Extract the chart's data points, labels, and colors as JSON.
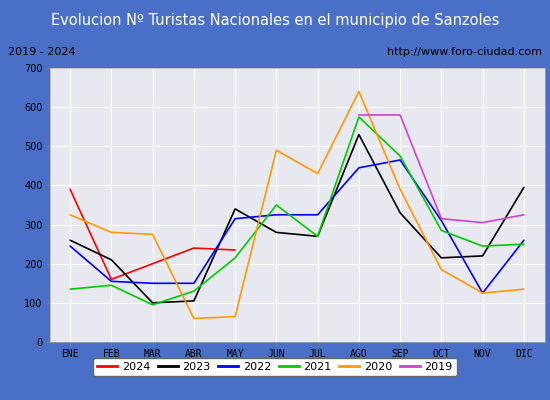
{
  "title": "Evolucion Nº Turistas Nacionales en el municipio de Sanzoles",
  "subtitle_left": "2019 - 2024",
  "subtitle_right": "http://www.foro-ciudad.com",
  "months": [
    "ENE",
    "FEB",
    "MAR",
    "ABR",
    "MAY",
    "JUN",
    "JUL",
    "AGO",
    "SEP",
    "OCT",
    "NOV",
    "DIC"
  ],
  "ylim": [
    0,
    700
  ],
  "yticks": [
    0,
    100,
    200,
    300,
    400,
    500,
    600,
    700
  ],
  "series": {
    "2024": {
      "color": "#ff0000",
      "values": [
        390,
        160,
        null,
        240,
        235,
        null,
        null,
        null,
        null,
        null,
        null,
        null
      ]
    },
    "2023": {
      "color": "#000000",
      "values": [
        260,
        210,
        100,
        105,
        340,
        280,
        270,
        530,
        330,
        215,
        220,
        395
      ]
    },
    "2022": {
      "color": "#0000ff",
      "values": [
        245,
        155,
        150,
        150,
        315,
        325,
        325,
        445,
        465,
        310,
        125,
        260
      ]
    },
    "2021": {
      "color": "#00cc00",
      "values": [
        135,
        145,
        95,
        130,
        215,
        350,
        270,
        575,
        475,
        285,
        245,
        250
      ]
    },
    "2020": {
      "color": "#ff9900",
      "values": [
        325,
        280,
        275,
        60,
        65,
        490,
        430,
        640,
        390,
        185,
        125,
        135
      ]
    },
    "2019": {
      "color": "#cc44cc",
      "values": [
        null,
        null,
        null,
        null,
        null,
        null,
        null,
        580,
        580,
        315,
        305,
        325
      ]
    }
  },
  "legend_order": [
    "2024",
    "2023",
    "2022",
    "2021",
    "2020",
    "2019"
  ],
  "title_bg_color": "#4a6fc7",
  "title_text_color": "#ffffff",
  "plot_bg_color": "#e8e8f0",
  "outer_bg_color": "#4a6fc7",
  "grid_color": "#ffffff",
  "inner_frame_bg": "#ffffff",
  "title_fontsize": 10.5,
  "subtitle_fontsize": 8,
  "tick_fontsize": 7,
  "legend_fontsize": 8
}
